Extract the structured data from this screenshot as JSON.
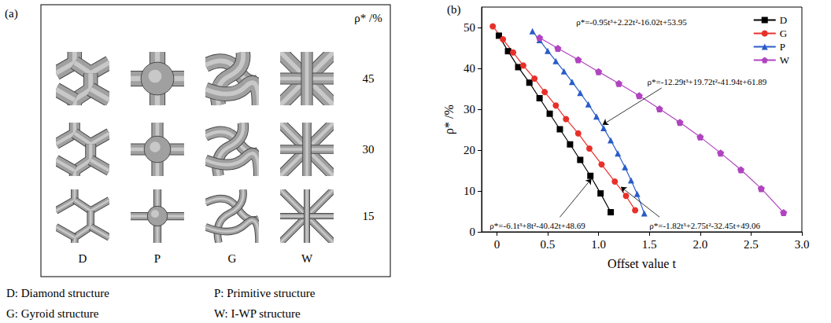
{
  "panel_a": {
    "label": "(a)",
    "row_header": "ρ* /%",
    "rows": [
      45,
      30,
      15
    ],
    "columns": [
      "D",
      "P",
      "G",
      "W"
    ],
    "key": [
      "D: Diamond structure",
      "P: Primitive structure",
      "G: Gyroid structure",
      "W: I-WP structure"
    ]
  },
  "chart_data": {
    "label": "(b)",
    "type": "line",
    "x_label": "Offset value t",
    "y_label": "ρ* /%",
    "xlim": [
      -0.15,
      3.0
    ],
    "xticks": [
      0,
      0.5,
      {
        "value": 1,
        "label": "1.0"
      },
      1.5,
      {
        "value": 2,
        "label": "2.0"
      },
      2.5,
      {
        "value": 3,
        "label": "3.0"
      }
    ],
    "ylim": [
      0,
      55
    ],
    "yticks": [
      0,
      10,
      20,
      30,
      40,
      50
    ],
    "grid": false,
    "legend": "upper right",
    "series": [
      {
        "name": "D",
        "color": "#000000",
        "marker": "square",
        "line_style": "solid",
        "x": [
          0.02,
          0.11,
          0.21,
          0.32,
          0.42,
          0.52,
          0.62,
          0.72,
          0.82,
          0.92,
          1.02,
          1.12
        ],
        "values": [
          48.0,
          44.2,
          40.3,
          36.5,
          32.7,
          28.9,
          25.1,
          21.4,
          17.6,
          13.7,
          9.4,
          4.8
        ]
      },
      {
        "name": "G",
        "color": "#e8302a",
        "marker": "circle",
        "line_style": "solid",
        "x": [
          -0.04,
          0.06,
          0.16,
          0.26,
          0.37,
          0.47,
          0.58,
          0.68,
          0.8,
          0.91,
          1.03,
          1.16,
          1.27,
          1.36
        ],
        "values": [
          50.3,
          47.1,
          43.9,
          40.7,
          37.5,
          34.2,
          30.9,
          27.6,
          24.1,
          20.4,
          16.5,
          12.3,
          8.8,
          5.3
        ]
      },
      {
        "name": "P",
        "color": "#2a5cc8",
        "marker": "triangle",
        "line_style": "solid",
        "x": [
          0.35,
          0.42,
          0.5,
          0.58,
          0.66,
          0.74,
          0.82,
          0.9,
          0.98,
          1.05,
          1.12,
          1.19,
          1.26,
          1.32,
          1.38,
          1.45
        ],
        "values": [
          49.1,
          46.9,
          44.3,
          41.8,
          39.3,
          36.7,
          34.0,
          31.2,
          28.2,
          25.4,
          22.4,
          19.2,
          15.8,
          12.6,
          9.3,
          4.5
        ]
      },
      {
        "name": "W",
        "color": "#b044c0",
        "marker": "pentagon",
        "line_style": "solid",
        "x": [
          0.42,
          0.6,
          0.8,
          1.0,
          1.2,
          1.4,
          1.6,
          1.8,
          2.0,
          2.2,
          2.4,
          2.6,
          2.82
        ],
        "values": [
          47.5,
          44.9,
          42.1,
          39.2,
          36.3,
          33.3,
          30.1,
          26.8,
          23.2,
          19.3,
          15.2,
          10.6,
          4.7
        ]
      }
    ],
    "annotations": [
      {
        "text": "ρ*=-0.95t³+2.22t²-16.02t+53.95",
        "series": "W"
      },
      {
        "text": "ρ*=-12.29t³+19.72t²-41.94t+61.89",
        "series": "P"
      },
      {
        "text": "ρ*=-6.1t³+8t²-40.42t+48.69",
        "series": "D"
      },
      {
        "text": "ρ*=-1.82t³+2.75t²-32.45t+49.06",
        "series": "G"
      }
    ]
  }
}
